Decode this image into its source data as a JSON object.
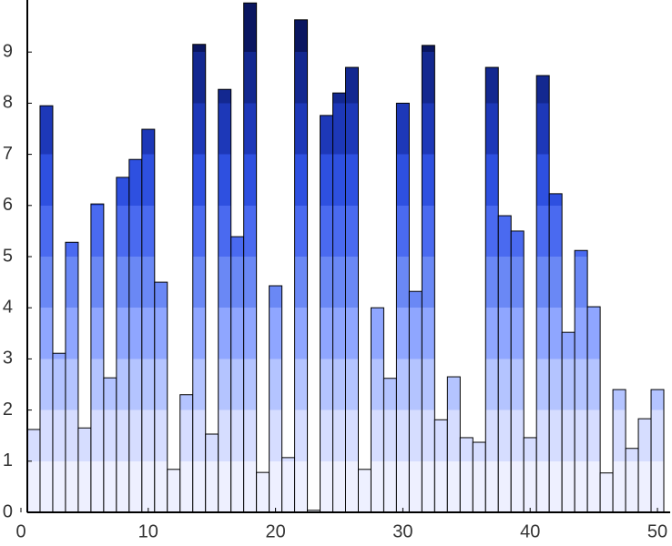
{
  "chart_data": {
    "type": "bar",
    "categories": [
      1,
      2,
      3,
      4,
      5,
      6,
      7,
      8,
      9,
      10,
      11,
      12,
      13,
      14,
      15,
      16,
      17,
      18,
      19,
      20,
      21,
      22,
      23,
      24,
      25,
      26,
      27,
      28,
      29,
      30,
      31,
      32,
      33,
      34,
      35,
      36,
      37,
      38,
      39,
      40,
      41,
      42,
      43,
      44,
      45,
      46,
      47,
      48,
      49,
      50
    ],
    "values": [
      1.62,
      7.95,
      3.11,
      5.28,
      1.65,
      6.03,
      2.63,
      6.55,
      6.9,
      7.49,
      4.5,
      0.84,
      2.3,
      9.15,
      1.53,
      8.27,
      5.39,
      9.96,
      0.78,
      4.43,
      1.07,
      9.63,
      0.04,
      7.76,
      8.2,
      8.7,
      0.84,
      4.0,
      2.62,
      8.0,
      4.32,
      9.13,
      1.81,
      2.65,
      1.46,
      1.37,
      8.7,
      5.8,
      5.5,
      1.46,
      8.54,
      6.23,
      3.52,
      5.12,
      4.02,
      0.77,
      2.4,
      1.25,
      1.83,
      2.4
    ],
    "band_colors": [
      "#eef0ff",
      "#d6ddff",
      "#b4c4ff",
      "#8fa6ff",
      "#6a88f5",
      "#4a6af0",
      "#2e50e0",
      "#1d38b8",
      "#132890",
      "#0a1660"
    ],
    "xlim": [
      0.5,
      51
    ],
    "xticks": [
      0,
      10,
      20,
      30,
      40,
      50
    ],
    "ylim": [
      0,
      10
    ],
    "yticks": [
      0,
      1,
      2,
      3,
      4,
      5,
      6,
      7,
      8,
      9
    ]
  }
}
